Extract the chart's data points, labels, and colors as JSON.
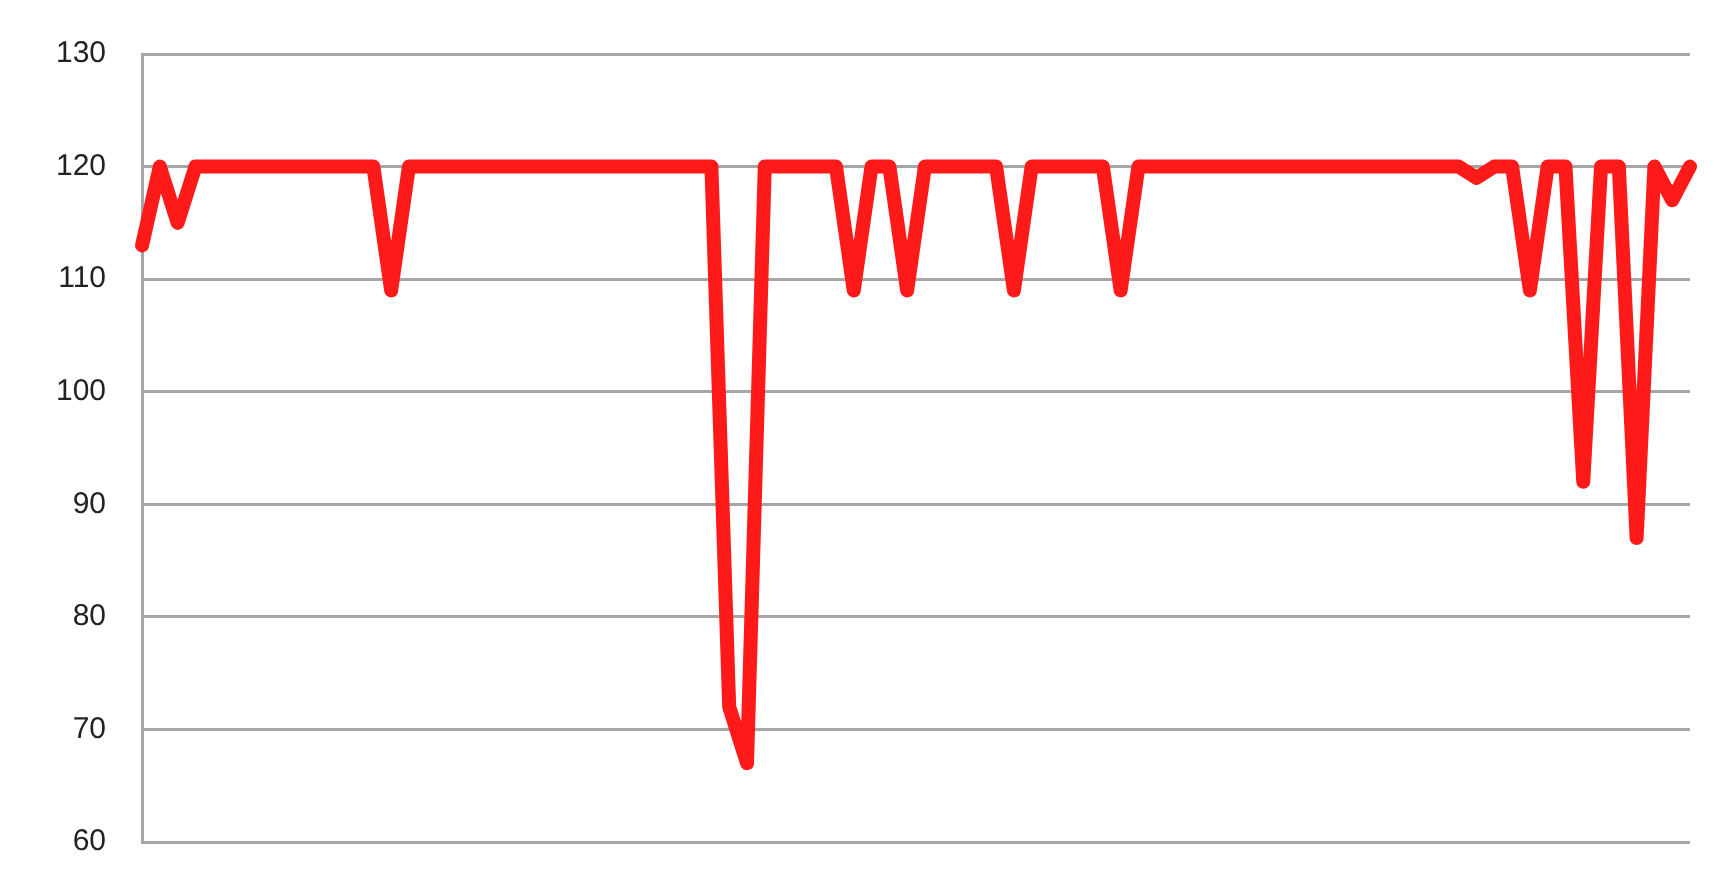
{
  "chart_data": {
    "type": "line",
    "categories": [
      null,
      null,
      null,
      null,
      null,
      null,
      null,
      null,
      null,
      null,
      null,
      null,
      null,
      null,
      null,
      null,
      null,
      null,
      null,
      null,
      null,
      null,
      null,
      null,
      null,
      null,
      null,
      null,
      null,
      null,
      null,
      null,
      null,
      null,
      null,
      null,
      null,
      null,
      null,
      null,
      null,
      null,
      null,
      null,
      null,
      null,
      null,
      null,
      null,
      null,
      null,
      null,
      null,
      null,
      null,
      null,
      null,
      null,
      null,
      null,
      null,
      null,
      null,
      null,
      null,
      null,
      null,
      null,
      null,
      null,
      null,
      null,
      null,
      null,
      null,
      null,
      null,
      null,
      null,
      null,
      null,
      null,
      null,
      null,
      null,
      null,
      null,
      null
    ],
    "series": [
      {
        "color": "#ff1a1a",
        "values": [
          113,
          120,
          115,
          120,
          120,
          120,
          120,
          120,
          120,
          120,
          120,
          120,
          120,
          120,
          109,
          120,
          120,
          120,
          120,
          120,
          120,
          120,
          120,
          120,
          120,
          120,
          120,
          120,
          120,
          120,
          120,
          120,
          120,
          72,
          67,
          120,
          120,
          120,
          120,
          120,
          109,
          120,
          120,
          109,
          120,
          120,
          120,
          120,
          120,
          109,
          120,
          120,
          120,
          120,
          120,
          109,
          120,
          120,
          120,
          120,
          120,
          120,
          120,
          120,
          120,
          120,
          120,
          120,
          120,
          120,
          120,
          120,
          120,
          120,
          120,
          119,
          120,
          120,
          109,
          120,
          120,
          92,
          120,
          120,
          87,
          120,
          117,
          120
        ]
      }
    ],
    "ylim": [
      60,
      130
    ],
    "yticks": [
      60,
      70,
      80,
      90,
      100,
      110,
      120,
      130
    ],
    "grid": "y",
    "marker": "none",
    "line_style": "solid",
    "legend": false
  }
}
